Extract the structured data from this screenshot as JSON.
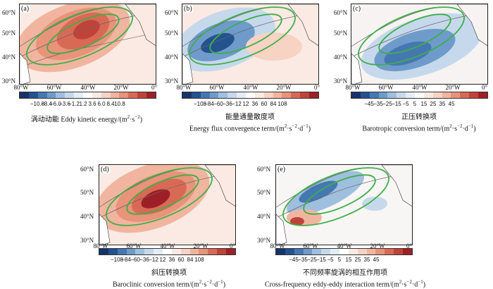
{
  "colors": {
    "red_ramp": [
      "#fbeae3",
      "#f7d3c4",
      "#f1b59f",
      "#e8937a",
      "#d86a55",
      "#c04339",
      "#9e2027"
    ],
    "blue_ramp": [
      "#e4edf6",
      "#c6d9ec",
      "#9fbfdf",
      "#6f9bcb",
      "#4578b2",
      "#24528f",
      "#16336a"
    ],
    "green": "#3fae49",
    "contour": "#666666"
  },
  "panels": [
    {
      "label": "(a)",
      "lat_labels": [
        "60°N",
        "50°N",
        "40°N",
        "30°N"
      ],
      "lon_labels": [
        "80°W",
        "60°W",
        "40°W",
        "20°W",
        "0°"
      ],
      "colorbar_ticks": [
        "−10.8",
        "−8.4",
        "−6.0",
        "−3.6",
        "−1.2",
        "1.2",
        "3.6",
        "6.0",
        "8.4",
        "10.8"
      ],
      "caption_cn": "涡动动能 Eddy kinetic energy/(m",
      "caption_sup1": "2",
      "caption_mid": "·s",
      "caption_sup2": "−2",
      "caption_end": ")",
      "field": "red"
    },
    {
      "label": "(b)",
      "lat_labels": [
        "60°N",
        "50°N",
        "40°N",
        "30°N"
      ],
      "lon_labels": [
        "80°W",
        "60°W",
        "40°W",
        "20°W",
        "0°"
      ],
      "colorbar_ticks": [
        "−108",
        "−84",
        "−60",
        "−36",
        "−12",
        "12",
        "36",
        "60",
        "84",
        "108"
      ],
      "caption_cn": "能量通量散度项",
      "caption_en": "Energy flux convergence term/(m",
      "caption_sup1": "2",
      "caption_mid": "·s",
      "caption_sup2": "−2",
      "caption_mid2": "·d",
      "caption_sup3": "−1",
      "caption_end": ")",
      "field": "blue"
    },
    {
      "label": "(c)",
      "lat_labels": [
        "60°N",
        "50°N",
        "40°N",
        "30°N"
      ],
      "lon_labels": [
        "80°W",
        "60°W",
        "40°W",
        "20°W",
        "0°"
      ],
      "colorbar_ticks": [
        "−45",
        "−35",
        "−25",
        "−15",
        "−5",
        "5",
        "15",
        "25",
        "35",
        "45"
      ],
      "caption_cn": "正压转换项",
      "caption_en": "Barotropic conversion term/(m",
      "caption_sup1": "2",
      "caption_mid": "·s",
      "caption_sup2": "−2",
      "caption_mid2": "·d",
      "caption_sup3": "−1",
      "caption_end": ")",
      "field": "blue"
    },
    {
      "label": "(d)",
      "lat_labels": [
        "60°N",
        "50°N",
        "40°N",
        "30°N"
      ],
      "lon_labels": [
        "80°W",
        "60°W",
        "40°W",
        "20°W",
        "0°"
      ],
      "colorbar_ticks": [
        "−108",
        "−84",
        "−60",
        "−36",
        "−12",
        "12",
        "36",
        "60",
        "84",
        "108"
      ],
      "caption_cn": "斜压转换项",
      "caption_en": "Baroclinic conversion term/(m",
      "caption_sup1": "2",
      "caption_mid": "·s",
      "caption_sup2": "−2",
      "caption_mid2": "·d",
      "caption_sup3": "−1",
      "caption_end": ")",
      "field": "red"
    },
    {
      "label": "(e)",
      "lat_labels": [
        "60°N",
        "50°N",
        "40°N",
        "30°N"
      ],
      "lon_labels": [
        "80°W",
        "60°W",
        "40°W",
        "20°W",
        "0°"
      ],
      "colorbar_ticks": [
        "−45",
        "−35",
        "−25",
        "−15",
        "−5",
        "5",
        "15",
        "25",
        "35",
        "45"
      ],
      "caption_cn": "不同频率旋涡的相互作用项",
      "caption_en": "Cross-frequency eddy-eddy interaction term/(m",
      "caption_sup1": "2",
      "caption_mid": "·s",
      "caption_sup2": "−2",
      "caption_mid2": "·d",
      "caption_sup3": "−1",
      "caption_end": ")",
      "field": "mixed"
    }
  ]
}
